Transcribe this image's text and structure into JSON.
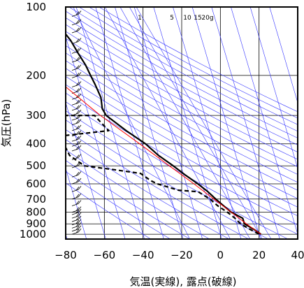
{
  "chart_data": {
    "type": "line",
    "diagram": "skew-T log-p",
    "xlabel": "気温(実線), 露点(破線)",
    "ylabel": "気圧(hPa)",
    "xlim": [
      -80,
      40
    ],
    "ylim": [
      1050,
      100
    ],
    "y_scale": "log",
    "grid": true,
    "x_ticks": [
      -80,
      -60,
      -40,
      -20,
      0,
      20,
      40
    ],
    "x_tick_labels": [
      "−80",
      "−60",
      "−40",
      "−20",
      "0",
      "20",
      "40"
    ],
    "y_ticks": [
      100,
      200,
      300,
      400,
      500,
      600,
      700,
      800,
      900,
      1000
    ],
    "y_tick_labels": [
      "100",
      "200",
      "300",
      "400",
      "500",
      "600",
      "700",
      "800",
      "900",
      "1000"
    ],
    "mixing_ratio_labels": [
      "1",
      "5",
      "10",
      "15",
      "20g"
    ],
    "series": [
      {
        "role": "temperature",
        "line_style": "solid",
        "color": "#000000",
        "points": [
          {
            "p": 100,
            "t": -60
          },
          {
            "p": 110,
            "t": -58
          },
          {
            "p": 120,
            "t": -52
          },
          {
            "p": 140,
            "t": -48
          },
          {
            "p": 160,
            "t": -46
          },
          {
            "p": 180,
            "t": -44
          },
          {
            "p": 200,
            "t": -43
          },
          {
            "p": 220,
            "t": -42
          },
          {
            "p": 250,
            "t": -41
          },
          {
            "p": 280,
            "t": -42
          },
          {
            "p": 300,
            "t": -41
          },
          {
            "p": 350,
            "t": -33
          },
          {
            "p": 400,
            "t": -25
          },
          {
            "p": 450,
            "t": -20
          },
          {
            "p": 500,
            "t": -14
          },
          {
            "p": 550,
            "t": -9
          },
          {
            "p": 600,
            "t": -4
          },
          {
            "p": 650,
            "t": 0
          },
          {
            "p": 700,
            "t": 3
          },
          {
            "p": 750,
            "t": 6
          },
          {
            "p": 800,
            "t": 9
          },
          {
            "p": 850,
            "t": 14
          },
          {
            "p": 900,
            "t": 14
          },
          {
            "p": 950,
            "t": 18
          },
          {
            "p": 1000,
            "t": 21
          }
        ]
      },
      {
        "role": "dewpoint",
        "line_style": "dashed",
        "color": "#000000",
        "points": [
          {
            "p": 300,
            "t": -70
          },
          {
            "p": 300,
            "t": -47
          },
          {
            "p": 320,
            "t": -45
          },
          {
            "p": 350,
            "t": -42
          },
          {
            "p": 370,
            "t": -68
          },
          {
            "p": 450,
            "t": -66
          },
          {
            "p": 500,
            "t": -60
          },
          {
            "p": 520,
            "t": -45
          },
          {
            "p": 540,
            "t": -32
          },
          {
            "p": 560,
            "t": -30
          },
          {
            "p": 580,
            "t": -28
          },
          {
            "p": 600,
            "t": -25
          },
          {
            "p": 640,
            "t": -15
          },
          {
            "p": 650,
            "t": -5
          },
          {
            "p": 700,
            "t": 0
          },
          {
            "p": 750,
            "t": 3
          },
          {
            "p": 800,
            "t": 7
          },
          {
            "p": 850,
            "t": 10
          },
          {
            "p": 900,
            "t": 12
          },
          {
            "p": 950,
            "t": 16
          },
          {
            "p": 1000,
            "t": 20
          }
        ]
      },
      {
        "role": "parcel",
        "line_style": "solid",
        "color": "#ff0000",
        "points": [
          {
            "p": 1000,
            "t": 21
          },
          {
            "p": 900,
            "t": 15
          },
          {
            "p": 800,
            "t": 9
          },
          {
            "p": 700,
            "t": 2
          },
          {
            "p": 600,
            "t": -6
          },
          {
            "p": 500,
            "t": -16
          },
          {
            "p": 400,
            "t": -28
          },
          {
            "p": 300,
            "t": -44
          },
          {
            "p": 200,
            "t": -63
          },
          {
            "p": 150,
            "t": -75
          }
        ]
      }
    ],
    "guide_lines_color": "#3333ff"
  }
}
